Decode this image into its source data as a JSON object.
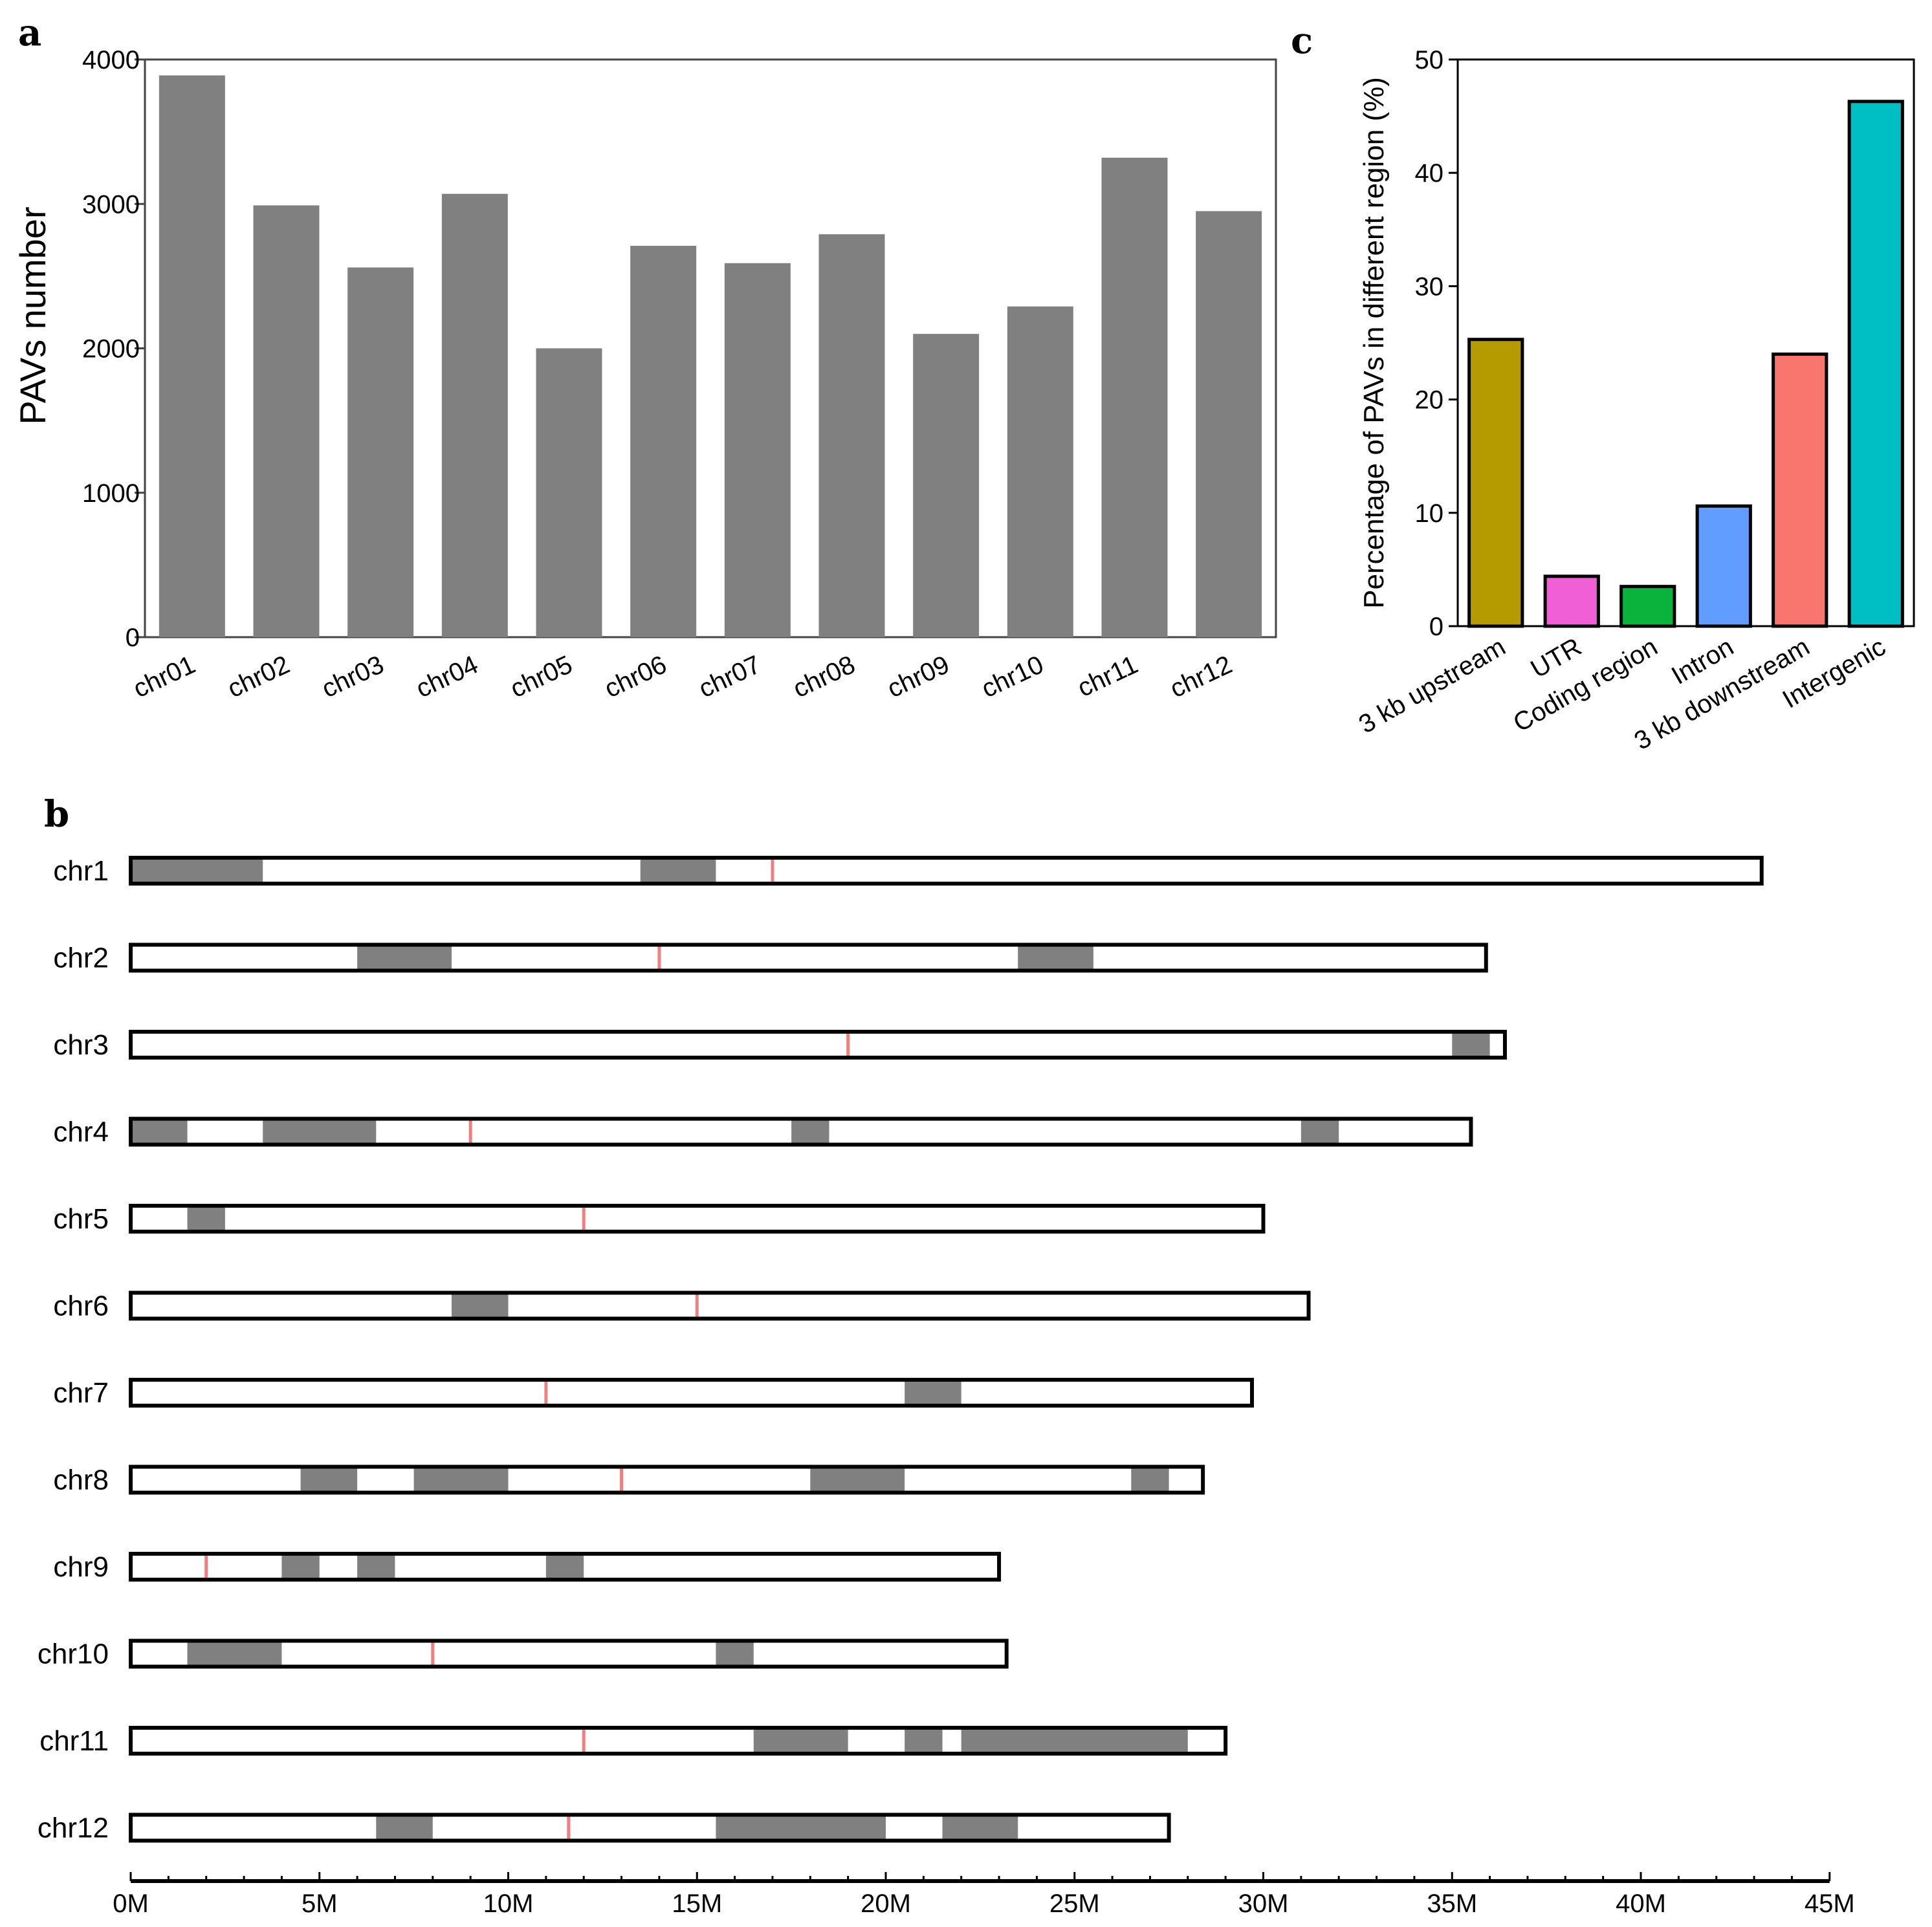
{
  "panels": {
    "a": "a",
    "b": "b",
    "c": "c"
  },
  "chart_data": [
    {
      "id": "a",
      "type": "bar",
      "title": "",
      "xlabel": "",
      "ylabel": "PAVs number",
      "ylim": [
        0,
        4000
      ],
      "yticks": [
        0,
        1000,
        2000,
        3000,
        4000
      ],
      "categories": [
        "chr01",
        "chr02",
        "chr03",
        "chr04",
        "chr05",
        "chr06",
        "chr07",
        "chr08",
        "chr09",
        "chr10",
        "chr11",
        "chr12"
      ],
      "values": [
        3890,
        2990,
        2560,
        3070,
        2000,
        2710,
        2590,
        2790,
        2100,
        2290,
        3320,
        2950
      ],
      "bar_color": "#808080",
      "grid": false
    },
    {
      "id": "c",
      "type": "bar",
      "title": "",
      "xlabel": "",
      "ylabel": "Percentage of PAVs in different region (%)",
      "ylim": [
        0,
        50
      ],
      "yticks": [
        0,
        10,
        20,
        30,
        40,
        50
      ],
      "categories": [
        "3 kb upstream",
        "UTR",
        "Coding region",
        "Intron",
        "3 kb downstream",
        "Intergenic"
      ],
      "values": [
        25.3,
        4.4,
        3.5,
        10.6,
        24.0,
        46.3
      ],
      "colors": [
        "#B59B00",
        "#F15FD6",
        "#0AB33C",
        "#619CFF",
        "#F8766D",
        "#00BFC4"
      ],
      "grid": false
    },
    {
      "id": "b",
      "type": "chromosome-map",
      "xlabel": "",
      "xlim_mb": [
        0,
        45
      ],
      "xticks": [
        "0M",
        "5M",
        "10M",
        "15M",
        "20M",
        "25M",
        "30M",
        "35M",
        "40M",
        "45M"
      ],
      "region_color": "#808080",
      "marker_color": "#F08080",
      "chromosomes": [
        {
          "name": "chr1",
          "length": 43.2,
          "centromere": 17.0,
          "regions": [
            [
              0,
              3.5
            ],
            [
              13.5,
              15.5
            ]
          ]
        },
        {
          "name": "chr2",
          "length": 35.9,
          "centromere": 14.0,
          "regions": [
            [
              6,
              8.5
            ],
            [
              23.5,
              25.5
            ]
          ]
        },
        {
          "name": "chr3",
          "length": 36.4,
          "centromere": 19.0,
          "regions": [
            [
              35,
              36
            ]
          ]
        },
        {
          "name": "chr4",
          "length": 35.5,
          "centromere": 9.0,
          "regions": [
            [
              0,
              1.5
            ],
            [
              3.5,
              6.5
            ],
            [
              17.5,
              18.5
            ],
            [
              31,
              32
            ]
          ]
        },
        {
          "name": "chr5",
          "length": 30.0,
          "centromere": 12.0,
          "regions": [
            [
              1.5,
              2.5
            ]
          ]
        },
        {
          "name": "chr6",
          "length": 31.2,
          "centromere": 15.0,
          "regions": [
            [
              8.5,
              10
            ]
          ]
        },
        {
          "name": "chr7",
          "length": 29.7,
          "centromere": 11.0,
          "regions": [
            [
              20.5,
              22
            ]
          ]
        },
        {
          "name": "chr8",
          "length": 28.4,
          "centromere": 13.0,
          "regions": [
            [
              4.5,
              6
            ],
            [
              7.5,
              10
            ],
            [
              18,
              20.5
            ],
            [
              26.5,
              27.5
            ]
          ]
        },
        {
          "name": "chr9",
          "length": 23.0,
          "centromere": 2.0,
          "regions": [
            [
              4,
              5
            ],
            [
              6,
              7
            ],
            [
              11,
              12
            ]
          ]
        },
        {
          "name": "chr10",
          "length": 23.2,
          "centromere": 8.0,
          "regions": [
            [
              1.5,
              4
            ],
            [
              15.5,
              16.5
            ]
          ]
        },
        {
          "name": "chr11",
          "length": 29.0,
          "centromere": 12.0,
          "regions": [
            [
              16.5,
              19
            ],
            [
              20.5,
              21.5
            ],
            [
              22,
              28
            ]
          ]
        },
        {
          "name": "chr12",
          "length": 27.5,
          "centromere": 11.6,
          "regions": [
            [
              6.5,
              8
            ],
            [
              15.5,
              20
            ],
            [
              21.5,
              23.5
            ]
          ]
        }
      ]
    }
  ]
}
